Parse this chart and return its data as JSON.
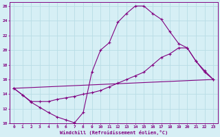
{
  "xlabel": "Windchill (Refroidissement éolien,°C)",
  "bg_color": "#d6eff5",
  "grid_color": "#b8dde5",
  "line_color": "#800080",
  "spine_color": "#800080",
  "xlim": [
    -0.5,
    23.5
  ],
  "ylim": [
    10,
    26.5
  ],
  "yticks": [
    10,
    12,
    14,
    16,
    18,
    20,
    22,
    24,
    26
  ],
  "xticks": [
    0,
    1,
    2,
    3,
    4,
    5,
    6,
    7,
    8,
    9,
    10,
    11,
    12,
    13,
    14,
    15,
    16,
    17,
    18,
    19,
    20,
    21,
    22,
    23
  ],
  "curve1_x": [
    0,
    1,
    2,
    3,
    4,
    5,
    6,
    7,
    8,
    9,
    10,
    11,
    12,
    13,
    14,
    15,
    16,
    17,
    18,
    19,
    20,
    21,
    22,
    23
  ],
  "curve1_y": [
    14.8,
    13.9,
    12.9,
    12.2,
    11.5,
    10.9,
    10.5,
    10.1,
    11.5,
    17.0,
    20.0,
    21.0,
    23.8,
    25.0,
    26.0,
    26.0,
    25.0,
    24.2,
    22.5,
    20.9,
    20.3,
    18.5,
    17.0,
    16.0
  ],
  "curve2_x": [
    0,
    1,
    2,
    3,
    4,
    5,
    6,
    7,
    8,
    9,
    10,
    11,
    12,
    13,
    14,
    15,
    16,
    17,
    18,
    19,
    20,
    21,
    22,
    23
  ],
  "curve2_y": [
    14.8,
    13.9,
    13.0,
    13.0,
    13.0,
    13.3,
    13.5,
    13.7,
    14.0,
    14.2,
    14.5,
    15.0,
    15.5,
    16.0,
    16.5,
    17.0,
    18.0,
    19.0,
    19.5,
    20.3,
    20.3,
    18.5,
    17.2,
    16.0
  ],
  "curve3_x": [
    0,
    23
  ],
  "curve3_y": [
    14.8,
    16.0
  ]
}
